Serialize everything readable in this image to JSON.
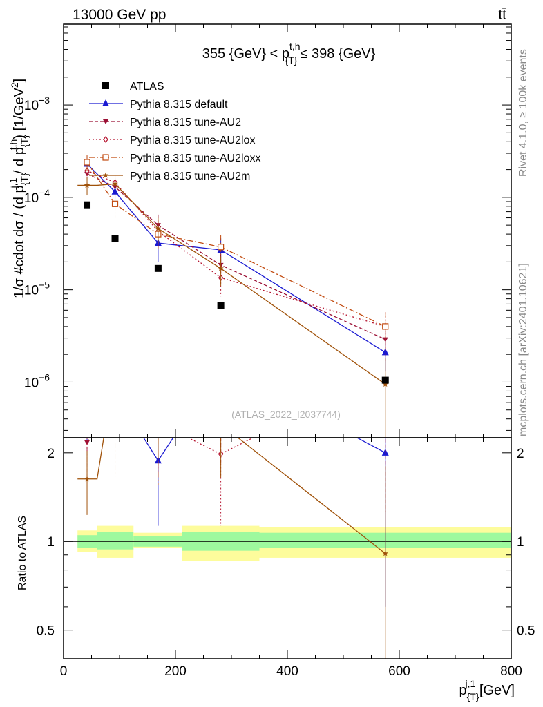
{
  "header": {
    "left": "13000 GeV pp",
    "right": "tt̄"
  },
  "side_labels": {
    "rivet": "Rivet 4.1.0, ≥ 100k events",
    "mcplots": "mcplots.cern.ch [arXiv:2401.10621]"
  },
  "watermark": "(ATLAS_2022_I2037744)",
  "chart_data": {
    "type": "scatter",
    "title": "355 {GeV} < p{T}t,h ≤ 398 {GeV}",
    "title_parts": {
      "pre": "355 {GeV} < p",
      "sup": "t,h",
      "sub": "{T}",
      "post": "≤ 398 {GeV}"
    },
    "xlabel": "p{T}j,1 [GeV]",
    "xlabel_parts": {
      "base": "p",
      "sup": "j,1",
      "sub": "{T}",
      "post": " [GeV]"
    },
    "ylabel": "1/σ #cdot dσ / (d p{T}j,1 / d p{T}t,h) [1/GeV²]",
    "ylabel_parts": {
      "a": "1/σ #cdot dσ / (d p",
      "sub1": "{T}",
      "sup1": "j,1",
      "b": " / d p",
      "sub2": "{T}",
      "sup2": "t,h",
      "c": ") [1/GeV",
      "sup3": "2",
      "d": "]"
    },
    "ratio_ylabel": "Ratio to ATLAS",
    "xlim": [
      0,
      800
    ],
    "ylim": [
      2.5e-07,
      0.0075
    ],
    "ratio_ylim": [
      0.4,
      2.25
    ],
    "x_ticks": [
      {
        "v": 0,
        "label": "0"
      },
      {
        "v": 200,
        "label": "200"
      },
      {
        "v": 400,
        "label": "400"
      },
      {
        "v": 600,
        "label": "600"
      },
      {
        "v": 800,
        "label": "800"
      }
    ],
    "y_ticks": [
      {
        "v": 1e-06,
        "base": "10",
        "exp": "−6"
      },
      {
        "v": 1e-05,
        "base": "10",
        "exp": "−5"
      },
      {
        "v": 0.0001,
        "base": "10",
        "exp": "−4"
      },
      {
        "v": 0.001,
        "base": "10",
        "exp": "−3"
      }
    ],
    "ratio_ticks": [
      {
        "v": 0.5,
        "label": "0.5"
      },
      {
        "v": 1,
        "label": "1"
      },
      {
        "v": 2,
        "label": "2"
      }
    ],
    "bins": [
      {
        "lo": 25,
        "hi": 60
      },
      {
        "lo": 60,
        "hi": 125
      },
      {
        "lo": 125,
        "hi": 212
      },
      {
        "lo": 212,
        "hi": 350
      },
      {
        "lo": 350,
        "hi": 800
      }
    ],
    "band_inner": [
      [
        0.95,
        1.05
      ],
      [
        0.94,
        1.08
      ],
      [
        0.96,
        1.04
      ],
      [
        0.93,
        1.08
      ],
      [
        0.95,
        1.07
      ]
    ],
    "band_outer": [
      [
        0.92,
        1.09
      ],
      [
        0.88,
        1.13
      ],
      [
        0.95,
        1.07
      ],
      [
        0.86,
        1.13
      ],
      [
        0.88,
        1.12
      ]
    ],
    "data": {
      "name": "ATLAS",
      "x": [
        42,
        92,
        169,
        281,
        575
      ],
      "y": [
        8.3e-05,
        3.6e-05,
        1.7e-05,
        6.8e-06,
        1.05e-06
      ]
    },
    "series": [
      {
        "name": "Pythia 8.315 default",
        "color": "#1a1ad2",
        "dash": "",
        "marker": "triangle-up",
        "x": [
          42,
          92,
          169,
          281,
          575
        ],
        "y": [
          0.00023,
          0.000115,
          3.2e-05,
          2.7e-05,
          2.1e-06
        ],
        "err": [
          5e-05,
          3e-05,
          1.2e-05,
          9e-06,
          8e-07
        ],
        "ratio": [
          2.77,
          3.2,
          1.88,
          3.97,
          2.0
        ],
        "ratio_err": [
          0.6,
          0.8,
          0.75,
          1.1,
          1.4
        ]
      },
      {
        "name": "Pythia 8.315 tune-AU2",
        "color": "#9b1035",
        "dash": "5,3",
        "marker": "triangle-down",
        "x": [
          42,
          92,
          169,
          281,
          575
        ],
        "y": [
          0.00018,
          0.00013,
          5e-05,
          1.85e-05,
          2.9e-06
        ],
        "err": [
          4e-05,
          3e-05,
          1.5e-05,
          6e-06,
          1.2e-06
        ],
        "ratio": [
          2.17,
          3.6,
          2.94,
          2.72,
          2.76
        ],
        "ratio_err": [
          0.55,
          0.8,
          0.8,
          0.9,
          1.5
        ]
      },
      {
        "name": "Pythia 8.315 tune-AU2lox",
        "color": "#b5122e",
        "dash": "2,3",
        "marker": "diamond-open",
        "x": [
          42,
          92,
          169,
          281,
          575
        ],
        "y": [
          0.000195,
          0.000145,
          4.3e-05,
          1.35e-05,
          4e-06
        ],
        "err": [
          4e-05,
          3e-05,
          1.3e-05,
          5e-06,
          1.7e-06
        ],
        "ratio": [
          2.35,
          4.0,
          2.53,
          1.98,
          3.8
        ],
        "ratio_err": [
          0.55,
          0.8,
          0.8,
          0.85,
          1.5
        ]
      },
      {
        "name": "Pythia 8.315 tune-AU2loxx",
        "color": "#c14a0f",
        "dash": "8,3,2,3",
        "marker": "square-open",
        "x": [
          42,
          92,
          169,
          281,
          575
        ],
        "y": [
          0.00024,
          8.5e-05,
          4e-05,
          2.9e-05,
          4e-06
        ],
        "err": [
          5e-05,
          2.5e-05,
          1.2e-05,
          1e-05,
          1.7e-06
        ],
        "ratio": [
          2.9,
          2.36,
          2.35,
          4.26,
          3.8
        ],
        "ratio_err": [
          0.6,
          0.7,
          0.8,
          1.1,
          1.5
        ]
      },
      {
        "name": "Pythia 8.315 tune-AU2m",
        "color": "#a0520a",
        "dash": "",
        "marker": "star",
        "x": [
          42,
          92,
          169,
          281,
          575
        ],
        "y": [
          0.000135,
          0.00014,
          4.6e-05,
          1.7e-05,
          9.5e-07
        ],
        "err": [
          3e-05,
          3e-05,
          1.4e-05,
          6e-06,
          9e-07
        ],
        "ratio": [
          1.63,
          3.9,
          2.7,
          2.5,
          0.91
        ],
        "ratio_err": [
          0.4,
          0.8,
          0.8,
          0.85,
          0.9
        ],
        "hbar": [
          25,
          60
        ]
      }
    ]
  }
}
